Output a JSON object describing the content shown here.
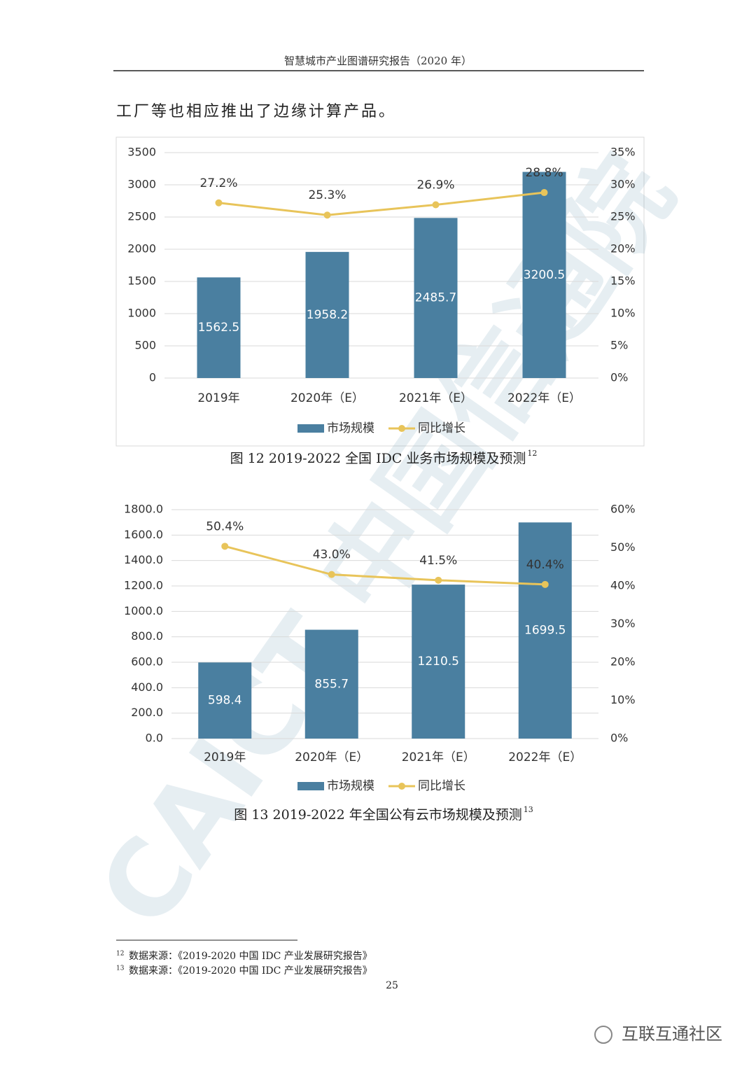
{
  "header": {
    "title": "智慧城市产业图谱研究报告（2020 年）"
  },
  "body_text": "工厂等也相应推出了边缘计算产品。",
  "background_watermark": "CAICT 中国信通院",
  "chart_data": [
    {
      "type": "bar",
      "title": "图  12 2019-2022 全国 IDC 业务市场规模及预测",
      "title_note": "12",
      "categories": [
        "2019年",
        "2020年（E）",
        "2021年（E）",
        "2022年（E）"
      ],
      "series": [
        {
          "name": "市场规模",
          "color": "#4a7fa0",
          "values": [
            1562.5,
            1958.2,
            2485.7,
            3200.5
          ]
        },
        {
          "name": "同比增长",
          "type": "line",
          "axis": "y2",
          "color": "#e8c45a",
          "values": [
            27.2,
            25.3,
            26.9,
            28.8
          ],
          "value_labels": [
            "27.2%",
            "25.3%",
            "26.9%",
            "28.8%"
          ]
        }
      ],
      "ylim": [
        0,
        3500
      ],
      "yticks": [
        0,
        500,
        1000,
        1500,
        2000,
        2500,
        3000,
        3500
      ],
      "y2lim": [
        0,
        35
      ],
      "y2ticks": [
        {
          "value": 0,
          "label": "0%"
        },
        {
          "value": 5,
          "label": "5%"
        },
        {
          "value": 10,
          "label": "10%"
        },
        {
          "value": 15,
          "label": "15%"
        },
        {
          "value": 20,
          "label": "20%"
        },
        {
          "value": 25,
          "label": "25%"
        },
        {
          "value": 30,
          "label": "30%"
        },
        {
          "value": 35,
          "label": "35%"
        }
      ],
      "grid": true,
      "legend": "bottom"
    },
    {
      "type": "bar",
      "title": "图  13 2019-2022 年全国公有云市场规模及预测",
      "title_note": "13",
      "categories": [
        "2019年",
        "2020年（E）",
        "2021年（E）",
        "2022年（E）"
      ],
      "series": [
        {
          "name": "市场规模",
          "color": "#4a7fa0",
          "values": [
            598.4,
            855.7,
            1210.5,
            1699.5
          ]
        },
        {
          "name": "同比增长",
          "type": "line",
          "axis": "y2",
          "color": "#e8c45a",
          "values": [
            50.4,
            43,
            41.5,
            40.4
          ],
          "value_labels": [
            "50.4%",
            "43.0%",
            "41.5%",
            "40.4%"
          ]
        }
      ],
      "ylim": [
        0,
        1800
      ],
      "yticks": [
        {
          "value": 0,
          "label": "0.0"
        },
        {
          "value": 200,
          "label": "200.0"
        },
        {
          "value": 400,
          "label": "400.0"
        },
        {
          "value": 600,
          "label": "600.0"
        },
        {
          "value": 800,
          "label": "800.0"
        },
        {
          "value": 1000,
          "label": "1000.0"
        },
        {
          "value": 1200,
          "label": "1200.0"
        },
        {
          "value": 1400,
          "label": "1400.0"
        },
        {
          "value": 1600,
          "label": "1600.0"
        },
        {
          "value": 1800,
          "label": "1800.0"
        }
      ],
      "y2lim": [
        0,
        60
      ],
      "y2ticks": [
        {
          "value": 0,
          "label": "0%"
        },
        {
          "value": 10,
          "label": "10%"
        },
        {
          "value": 20,
          "label": "20%"
        },
        {
          "value": 30,
          "label": "30%"
        },
        {
          "value": 40,
          "label": "40%"
        },
        {
          "value": 50,
          "label": "50%"
        },
        {
          "value": 60,
          "label": "60%"
        }
      ],
      "grid": true,
      "legend": "bottom"
    }
  ],
  "footnotes": [
    {
      "mark": "12",
      "text": "数据来源：《2019-2020 中国 IDC 产业发展研究报告》"
    },
    {
      "mark": "13",
      "text": "数据来源：《2019-2020 中国 IDC 产业发展研究报告》"
    }
  ],
  "page_number": "25",
  "watermark": "互联互通社区"
}
